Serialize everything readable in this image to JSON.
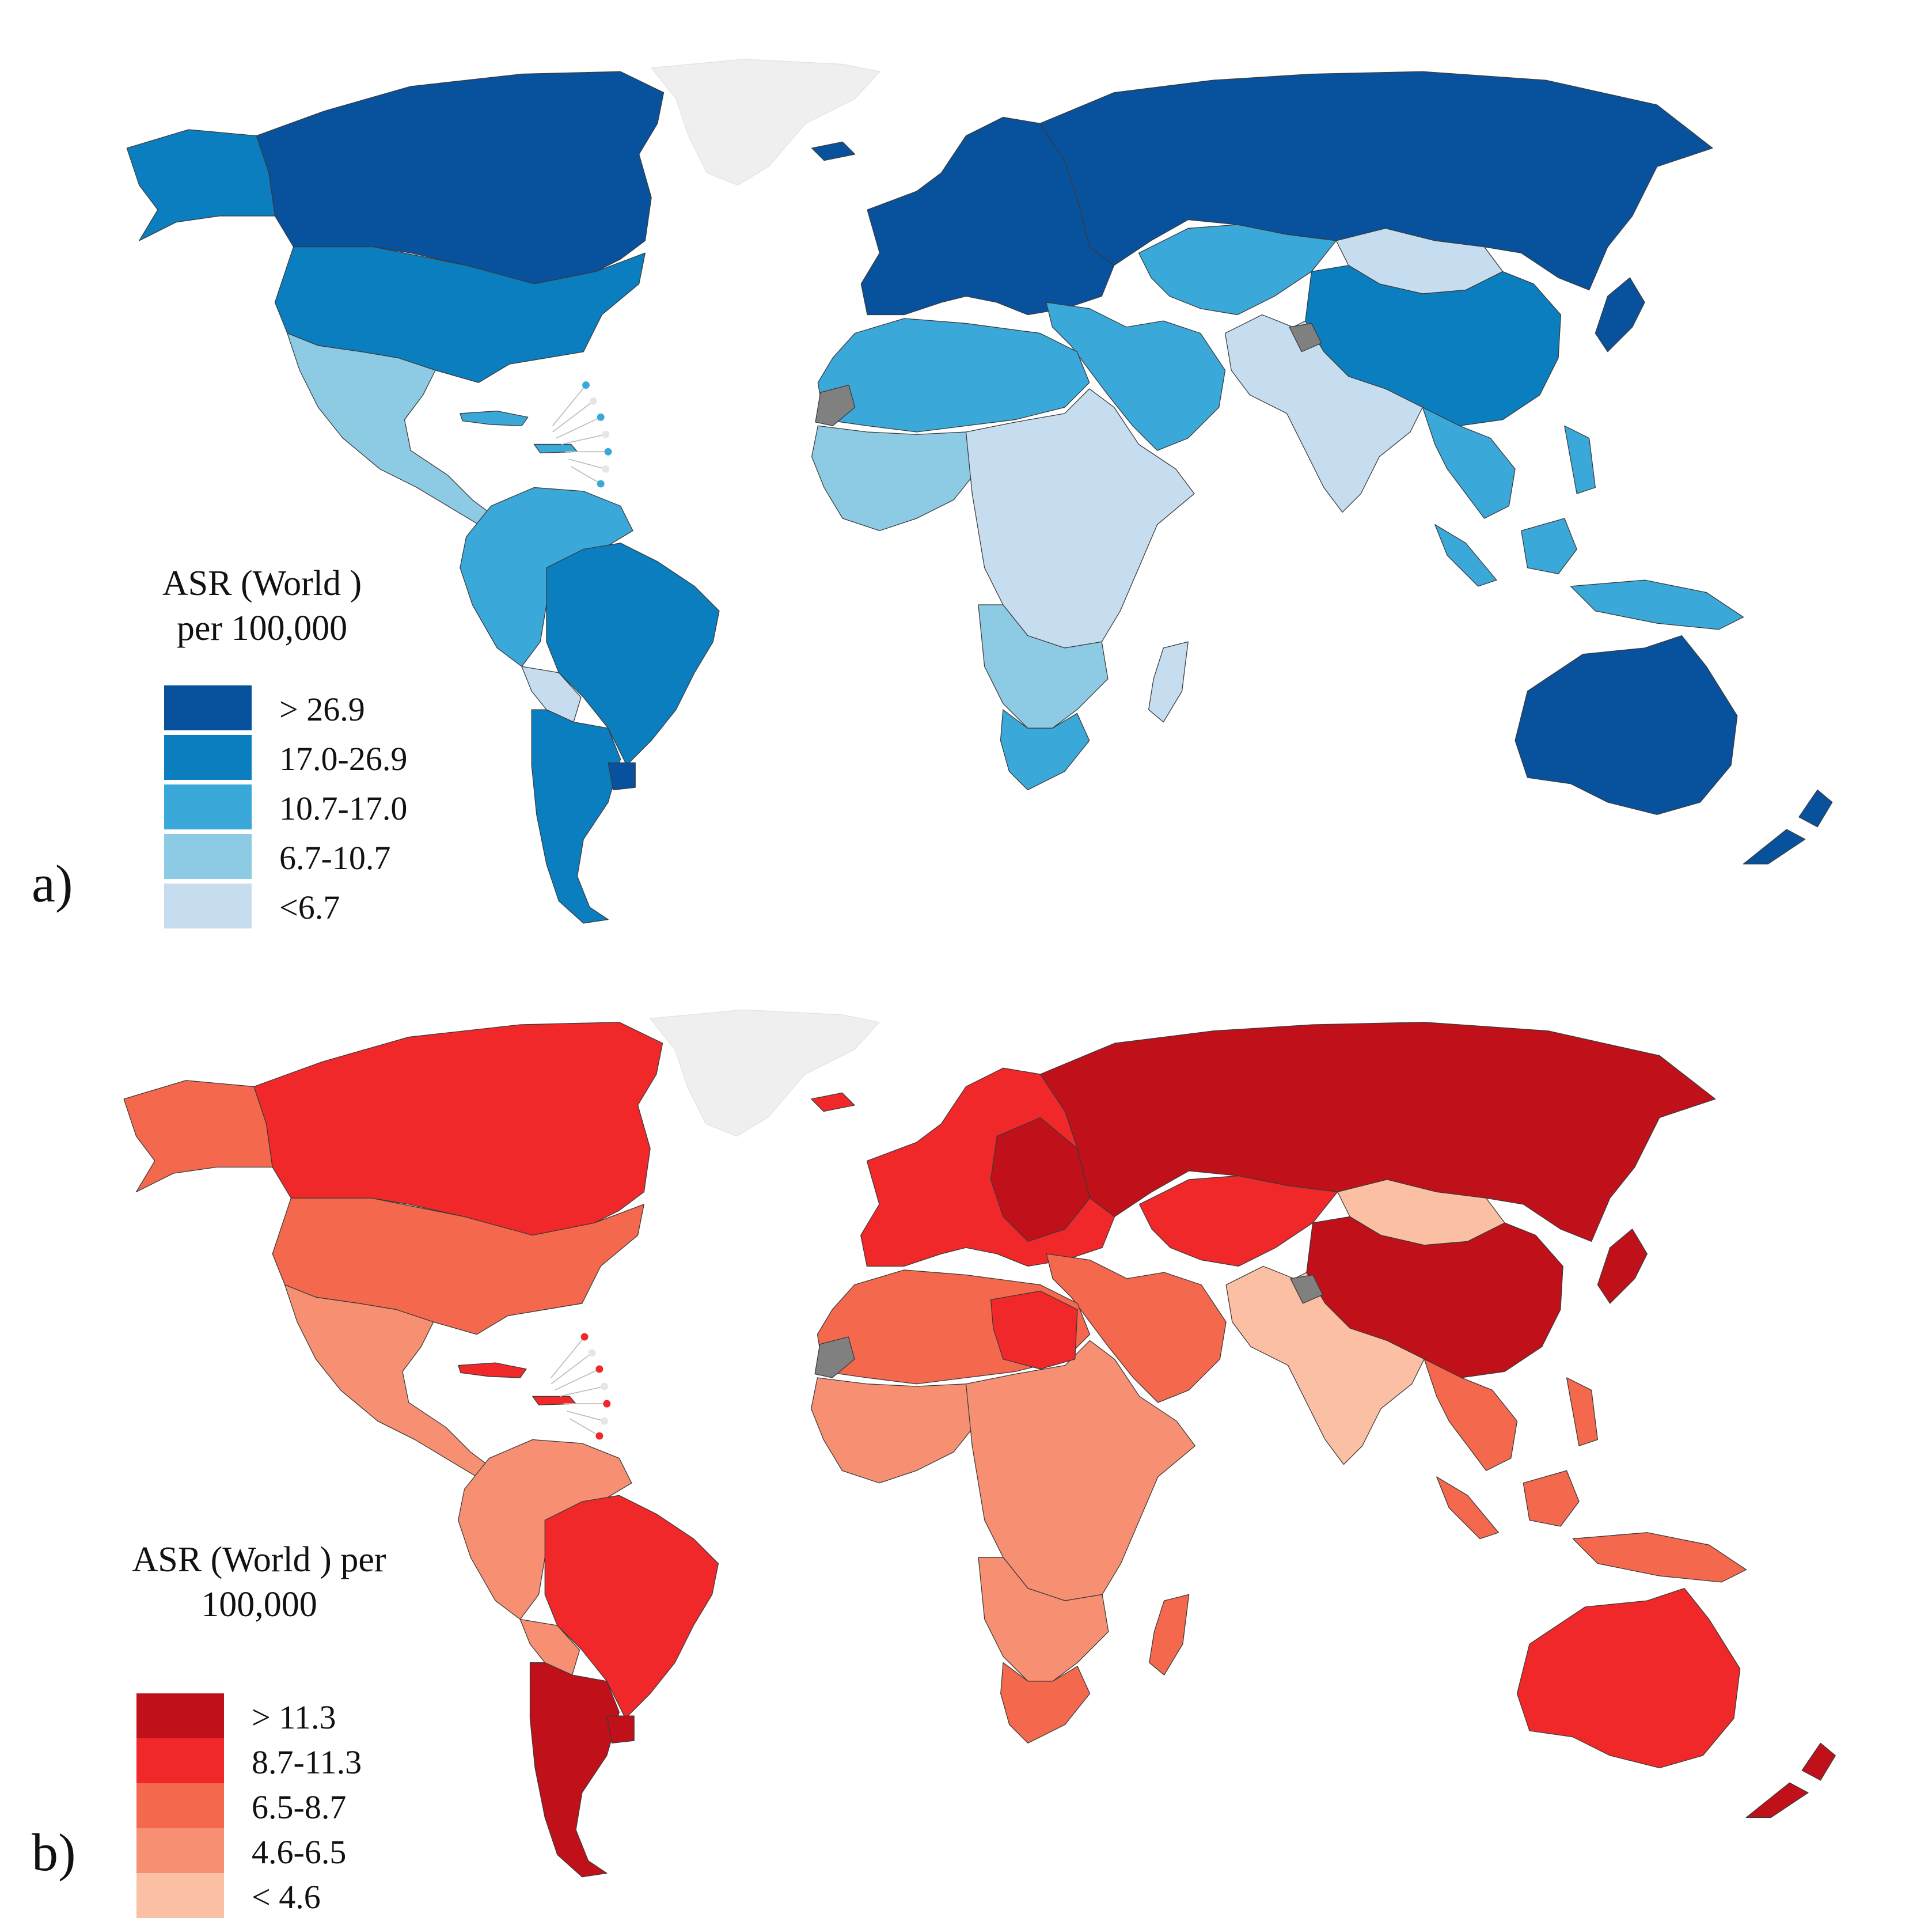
{
  "panels": [
    {
      "label": "a)",
      "legend": {
        "title_line1": "ASR (World )",
        "title_line2": "per 100,000",
        "items": [
          {
            "label": "> 26.9",
            "color": "#08519c"
          },
          {
            "label": "17.0-26.9",
            "color": "#0b7ebf"
          },
          {
            "label": "10.7-17.0",
            "color": "#3aa8d8"
          },
          {
            "label": "6.7-10.7",
            "color": "#8ccbe3"
          },
          {
            "label": "<6.7",
            "color": "#c6dcef"
          }
        ]
      }
    },
    {
      "label": "b)",
      "legend": {
        "title_line1": "ASR (World ) per",
        "title_line2": "100,000",
        "items": [
          {
            "label": "> 11.3",
            "color": "#c0101a"
          },
          {
            "label": "8.7-11.3",
            "color": "#f0282a"
          },
          {
            "label": "6.5-8.7",
            "color": "#f4684e"
          },
          {
            "label": "4.6-6.5",
            "color": "#f79072"
          },
          {
            "label": "< 4.6",
            "color": "#fbbfa3"
          }
        ]
      }
    }
  ],
  "colors": {
    "no_data": "#808080",
    "not_applicable": "#efefef",
    "border": "#3a3a3a"
  },
  "map_regions": {
    "a": {
      "north_america_north": "> 26.9",
      "alaska": "17.0-26.9",
      "usa": "17.0-26.9",
      "mexico_central_america": "6.7-10.7",
      "caribbean": "10.7-17.0",
      "south_america_north": "10.7-17.0",
      "brazil": "17.0-26.9",
      "bolivia": "<6.7",
      "southern_cone": "17.0-26.9",
      "uruguay": "> 26.9",
      "greenland": "not applicable",
      "iceland": "> 26.9",
      "europe": "> 26.9",
      "russia": "> 26.9",
      "central_asia": "10.7-17.0",
      "mongolia": "<6.7",
      "china": "17.0-26.9",
      "japan": "> 26.9",
      "middle_east": "10.7-17.0",
      "south_asia": "<6.7",
      "southeast_asia": "10.7-17.0",
      "north_africa": "10.7-17.0",
      "west_africa": "6.7-10.7",
      "east_central_africa": "<6.7",
      "southern_africa": "6.7-10.7",
      "south_africa": "10.7-17.0",
      "madagascar": "<6.7",
      "australia": "> 26.9",
      "new_zealand": "> 26.9",
      "western_sahara": "no data",
      "kashmir": "no data"
    },
    "b": {
      "north_america_north": "8.7-11.3",
      "alaska": "6.5-8.7",
      "usa": "6.5-8.7",
      "mexico_central_america": "4.6-6.5",
      "caribbean": "8.7-11.3",
      "south_america_north": "4.6-6.5",
      "brazil": "8.7-11.3",
      "bolivia": "4.6-6.5",
      "southern_cone": "> 11.3",
      "uruguay": "> 11.3",
      "greenland": "not applicable",
      "iceland": "8.7-11.3",
      "europe": "8.7-11.3",
      "eastern_europe": "> 11.3",
      "russia": "> 11.3",
      "central_asia": "8.7-11.3",
      "mongolia": "< 4.6",
      "china": "> 11.3",
      "japan": "> 11.3",
      "middle_east": "6.5-8.7",
      "south_asia": "< 4.6",
      "southeast_asia": "6.5-8.7",
      "north_africa": "6.5-8.7",
      "libya": "8.7-11.3",
      "west_africa": "4.6-6.5",
      "east_central_africa": "4.6-6.5",
      "southern_africa": "4.6-6.5",
      "south_africa": "6.5-8.7",
      "madagascar": "6.5-8.7",
      "australia": "8.7-11.3",
      "new_zealand": "> 11.3",
      "western_sahara": "no data",
      "kashmir": "no data"
    }
  }
}
